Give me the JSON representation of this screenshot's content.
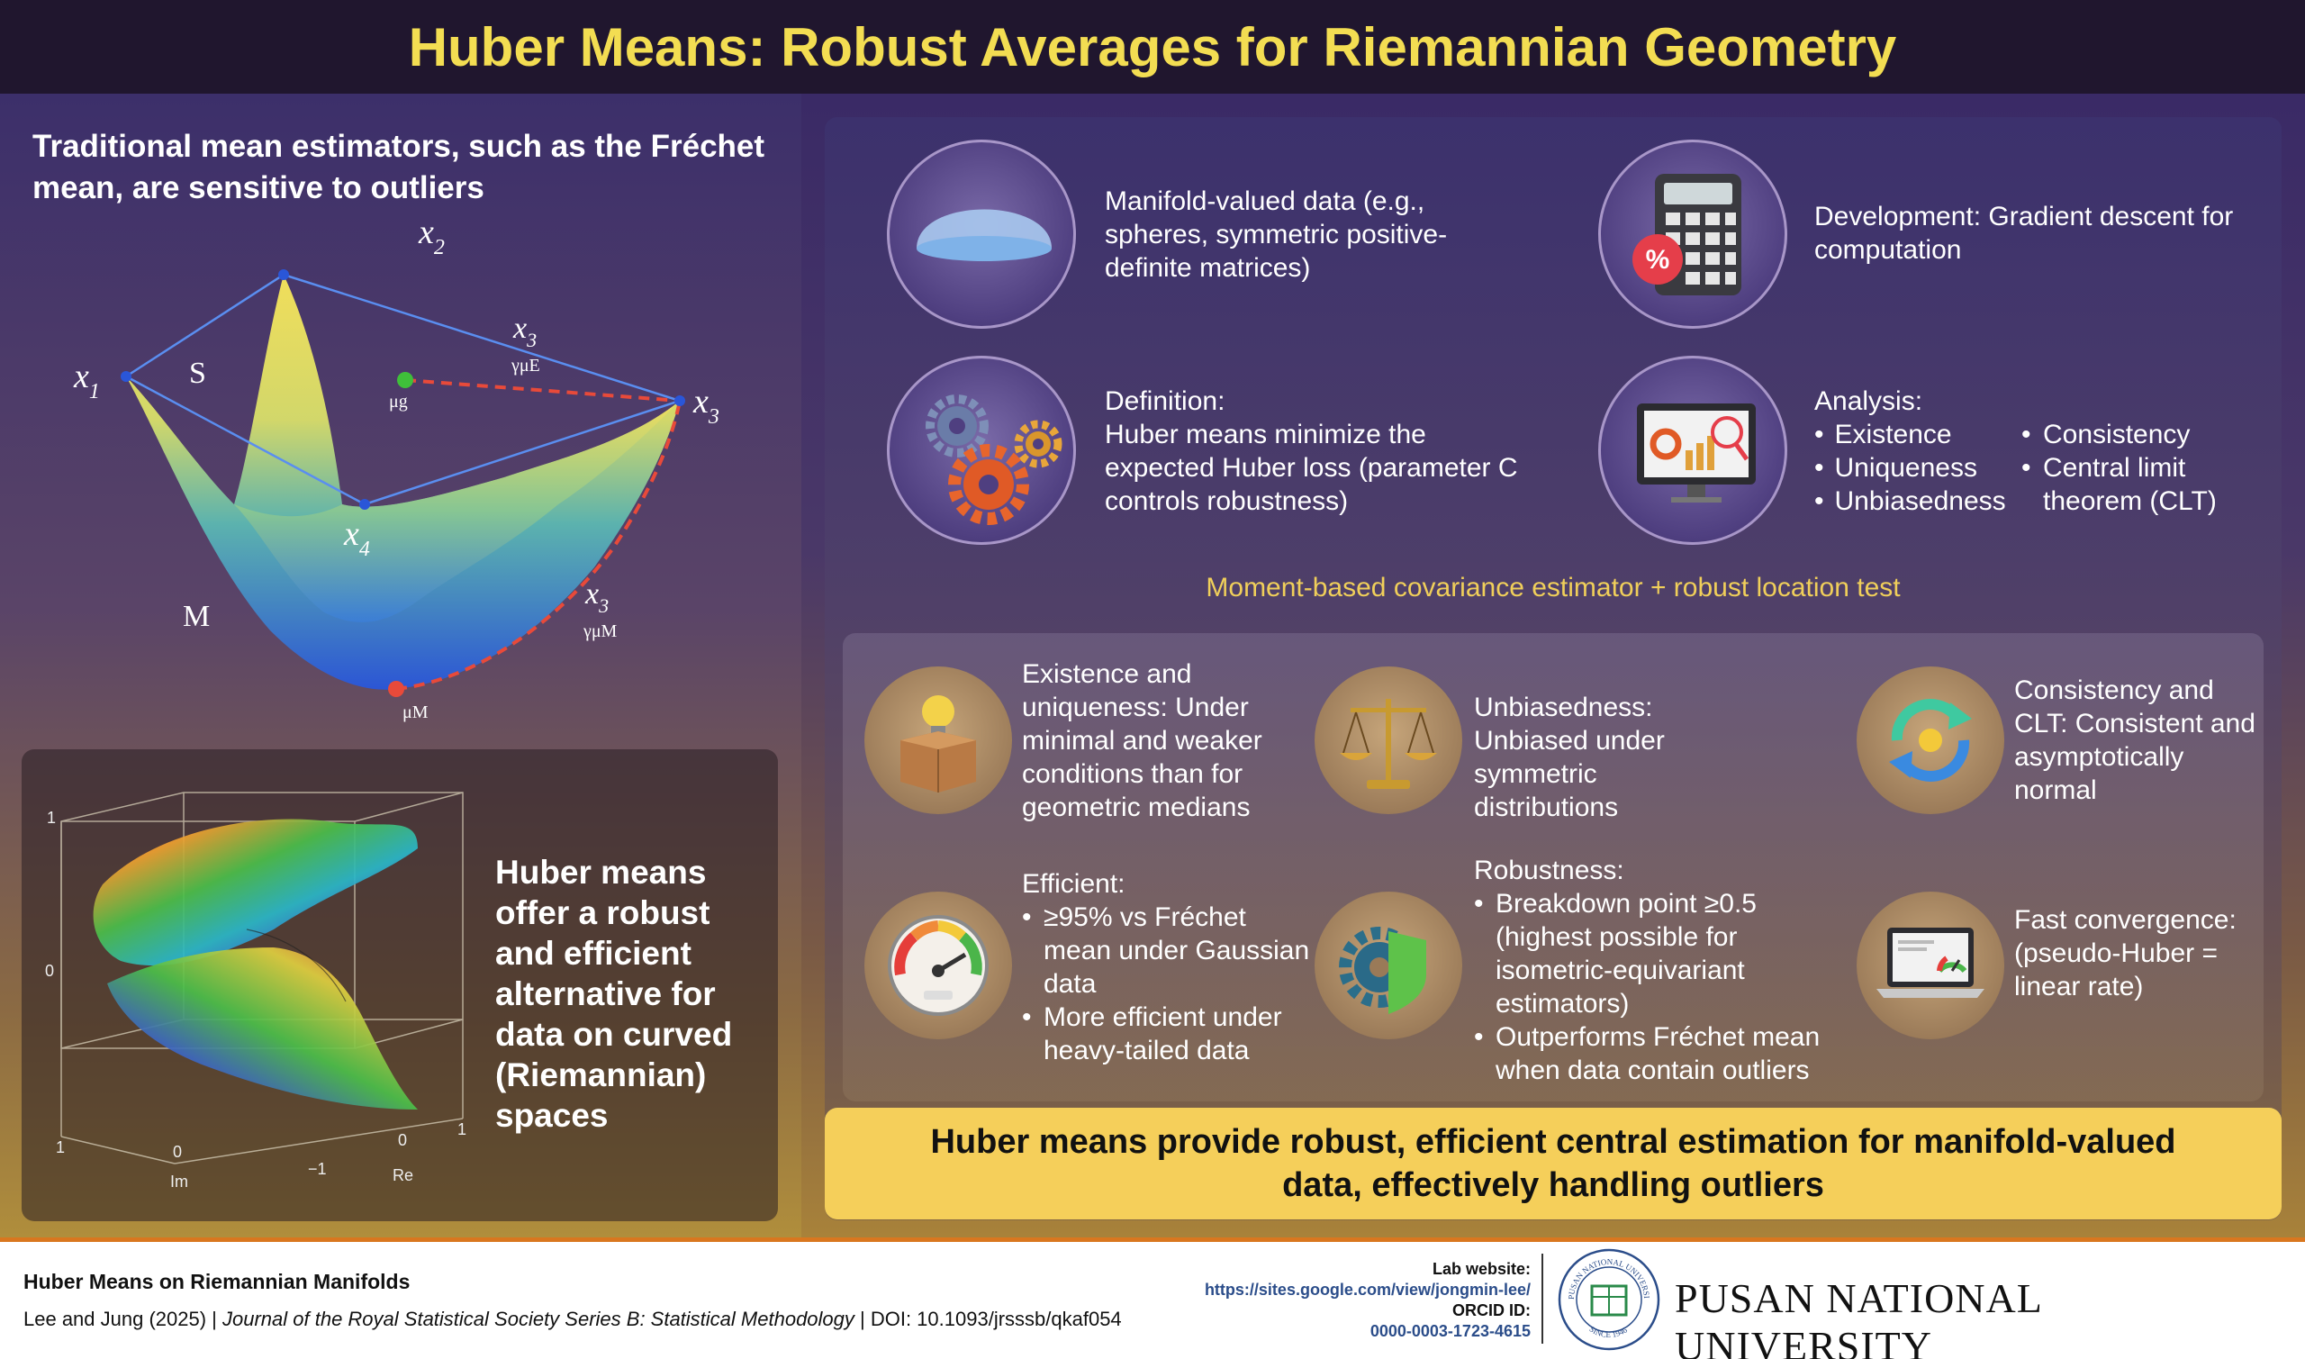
{
  "title": "Huber Means: Robust Averages for Riemannian Geometry",
  "left": {
    "header": "Traditional mean estimators, such as the Fréchet mean, are sensitive to outliers",
    "diagram": {
      "x1": "x",
      "x1_sub": "1",
      "x2": "x",
      "x2_sub": "2",
      "x3": "x",
      "x3_sub": "3",
      "x4": "x",
      "x4_sub": "4",
      "x3_e": "x",
      "x3_e_sub": "3",
      "x3_e_tag": "γμE",
      "x3_m": "x",
      "x3_m_sub": "3",
      "x3_m_tag": "γμM",
      "S": "S",
      "M": "M",
      "mu_g": "μg",
      "mu_M": "μM"
    },
    "plot": {
      "ticks_z": [
        "1",
        "0"
      ],
      "ticks_im": [
        "1",
        "0",
        "−1"
      ],
      "ticks_re": [
        "0",
        "1"
      ],
      "label_im": "Im",
      "label_re": "Re"
    },
    "plot_text": "Huber means offer a robust and efficient alternative for data on curved (Riemannian) spaces"
  },
  "top_items": [
    {
      "text": "Manifold-valued data (e.g., spheres, symmetric positive-definite matrices)",
      "icon": "dome-icon"
    },
    {
      "text": "Development: Gradient descent for computation",
      "icon": "calculator-icon"
    },
    {
      "title": "Definition:",
      "text": "Huber means minimize the expected Huber loss (parameter C controls robustness)",
      "icon": "gears-icon"
    },
    {
      "title": "Analysis:",
      "col1": [
        "Existence",
        "Uniqueness",
        "Unbiasedness"
      ],
      "col2": [
        "Consistency",
        "Central limit theorem (CLT)"
      ],
      "icon": "monitor-analytics-icon"
    }
  ],
  "moment_line": "Moment-based covariance estimator + robust location test",
  "features": [
    {
      "text": "Existence and uniqueness: Under minimal and weaker conditions than for geometric medians",
      "icon": "lightbulb-box-icon"
    },
    {
      "text": "Unbiasedness: Unbiased under symmetric distributions",
      "icon": "scales-icon"
    },
    {
      "text": "Consistency and CLT: Consistent and asymptotically normal",
      "icon": "cycle-arrows-icon"
    },
    {
      "title": "Efficient:",
      "bullets": [
        "≥95% vs Fréchet mean under Gaussian data",
        "More efficient under heavy-tailed data"
      ],
      "icon": "gauge-icon"
    },
    {
      "title": "Robustness:",
      "bullets": [
        "Breakdown point ≥0.5 (highest possible for isometric-equivariant estimators)",
        "Outperforms Fréchet mean when data contain outliers"
      ],
      "icon": "gear-shield-icon"
    },
    {
      "text": "Fast convergence: (pseudo-Huber = linear rate)",
      "icon": "laptop-gauge-icon"
    }
  ],
  "conclusion": "Huber means provide robust, efficient central estimation for manifold-valued data, effectively handling outliers",
  "footer": {
    "paper_title": "Huber Means on Riemannian Manifolds",
    "citation_authors": "Lee and Jung (2025) | ",
    "citation_journal": "Journal of the Royal Statistical Society Series B: Statistical Methodology",
    "citation_doi": " | DOI: 10.1093/jrsssb/qkaf054",
    "lab_label": "Lab website:",
    "lab_url": "https://sites.google.com/view/jongmin-lee/",
    "orcid_label": "ORCID ID:",
    "orcid_value": "0000-0003-1723-4615",
    "seal_top": "PUSAN NATIONAL UNIVERSITY",
    "seal_bottom": "SINCE 1946",
    "university": "PUSAN NATIONAL UNIVERSITY"
  }
}
